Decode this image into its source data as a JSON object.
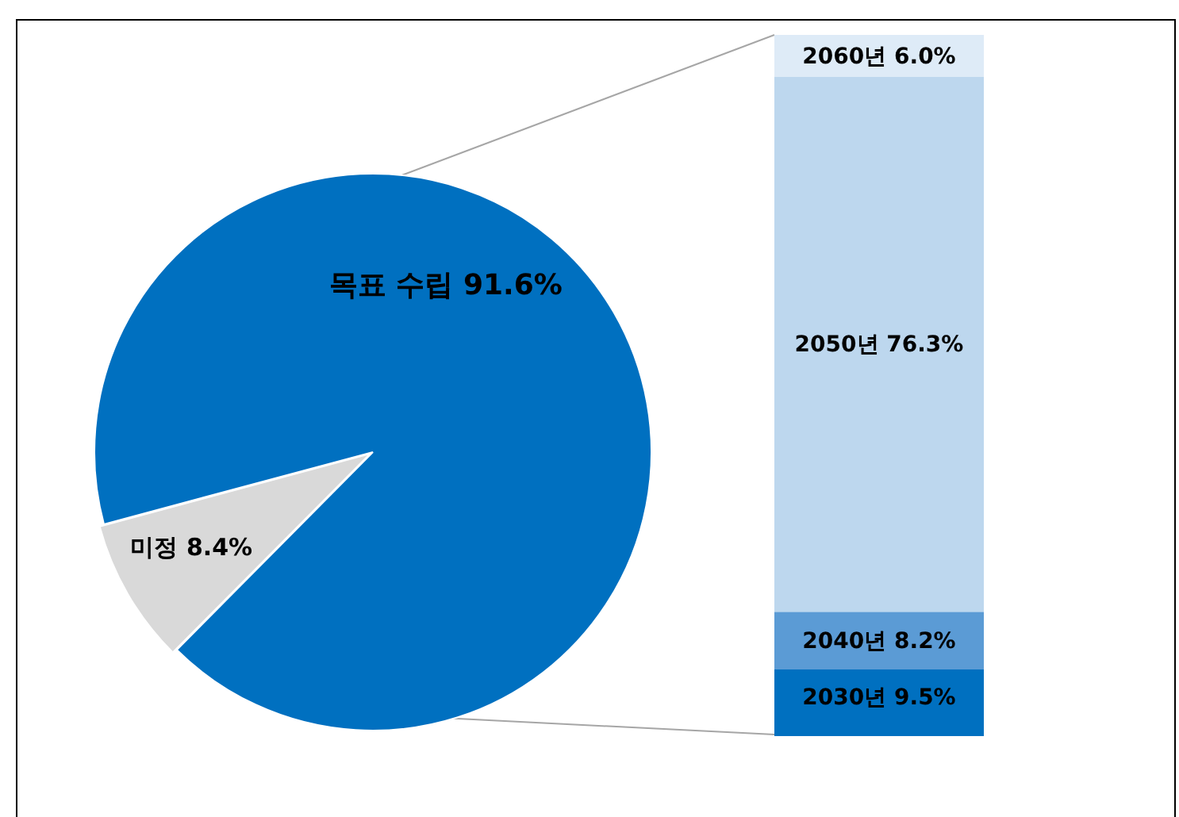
{
  "chart_data": [
    {
      "type": "pie",
      "categories": [
        "목표 수립",
        "미정"
      ],
      "values": [
        91.6,
        8.4
      ],
      "colors": [
        "#0070c0",
        "#d9d9d9"
      ],
      "value_labels": [
        "91.6%",
        "8.4%"
      ],
      "legend": false
    },
    {
      "type": "bar",
      "stacked": true,
      "categories": [
        null
      ],
      "legend": false,
      "tick_labels": false,
      "series": [
        {
          "name": "2030년",
          "color": "#0070c0",
          "values": [
            9.5
          ],
          "value_labels": [
            "9.5%"
          ]
        },
        {
          "name": "2040년",
          "color": "#5b9bd5",
          "values": [
            8.2
          ],
          "value_labels": [
            "8.2%"
          ]
        },
        {
          "name": "2050년",
          "color": "#bdd7ee",
          "values": [
            76.3
          ],
          "value_labels": [
            "76.3%"
          ]
        },
        {
          "name": "2060년",
          "color": "#deebf7",
          "values": [
            6.0
          ],
          "value_labels": [
            "6.0%"
          ]
        }
      ]
    }
  ]
}
